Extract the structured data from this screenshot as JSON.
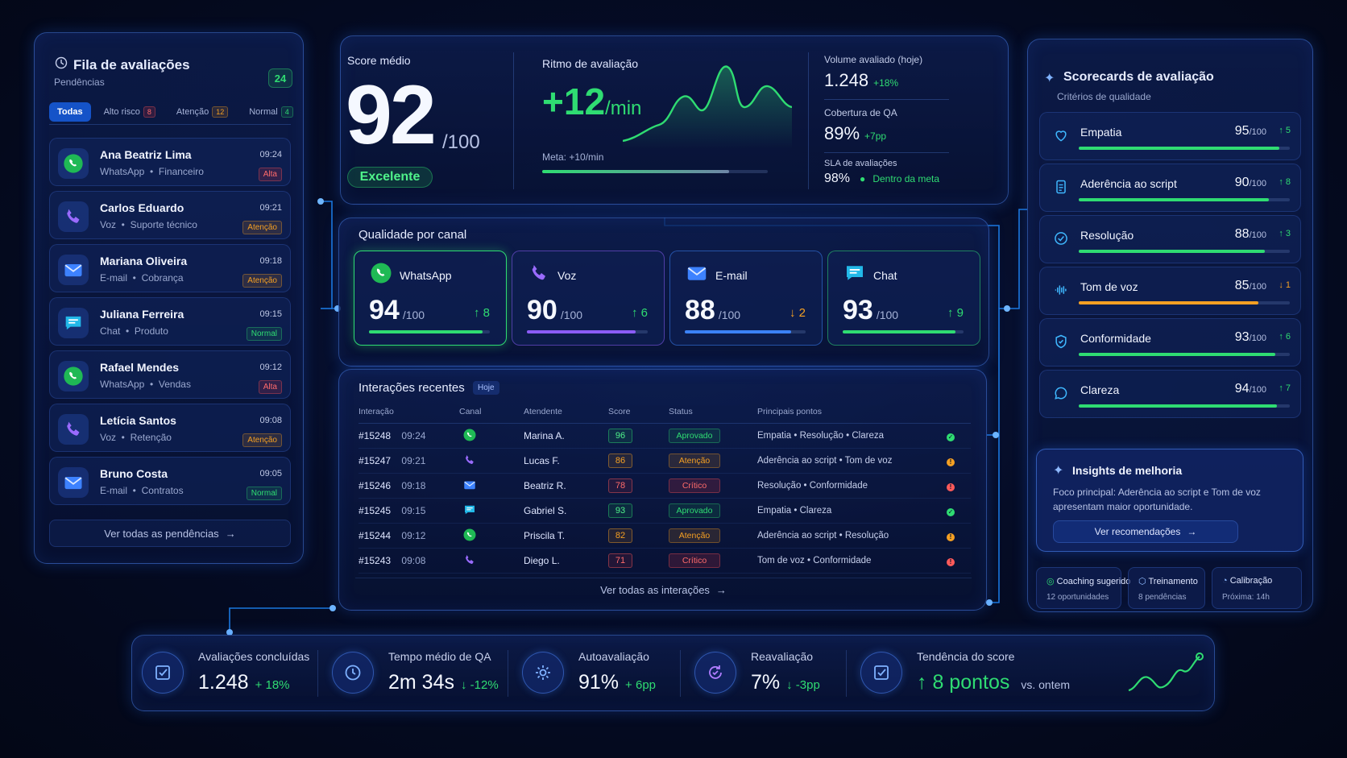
{
  "queue": {
    "title": "Fila de avaliações",
    "subtitle": "Pendências",
    "count": "24",
    "tabs": [
      {
        "label": "Todas",
        "badge": ""
      },
      {
        "label": "Alto risco",
        "badge": "8"
      },
      {
        "label": "Atenção",
        "badge": "12"
      },
      {
        "label": "Normal",
        "badge": "4"
      }
    ],
    "items": [
      {
        "name": "Ana Beatriz Lima",
        "channel": "WhatsApp",
        "area": "Financeiro",
        "time": "09:24",
        "priority": "Alta"
      },
      {
        "name": "Carlos Eduardo",
        "channel": "Voz",
        "area": "Suporte técnico",
        "time": "09:21",
        "priority": "Atenção"
      },
      {
        "name": "Mariana Oliveira",
        "channel": "E-mail",
        "area": "Cobrança",
        "time": "09:18",
        "priority": "Atenção"
      },
      {
        "name": "Juliana Ferreira",
        "channel": "Chat",
        "area": "Produto",
        "time": "09:15",
        "priority": "Normal"
      },
      {
        "name": "Rafael Mendes",
        "channel": "WhatsApp",
        "area": "Vendas",
        "time": "09:12",
        "priority": "Alta"
      },
      {
        "name": "Letícia Santos",
        "channel": "Voz",
        "area": "Retenção",
        "time": "09:08",
        "priority": "Atenção"
      },
      {
        "name": "Bruno Costa",
        "channel": "E-mail",
        "area": "Contratos",
        "time": "09:05",
        "priority": "Normal"
      }
    ],
    "footer": "Ver todas as pendências"
  },
  "score": {
    "label": "Score médio",
    "value": "92",
    "max": "/100",
    "status": "Excelente"
  },
  "pace": {
    "label": "Ritmo de avaliação",
    "value": "+12",
    "unit": "/min",
    "meta": "Meta: +10/min",
    "progress": 0.83
  },
  "volume": [
    {
      "label": "Volume avaliado (hoje)",
      "value": "1.248",
      "delta": "+18%"
    },
    {
      "label": "Cobertura de QA",
      "value": "89%",
      "delta": "+7pp"
    },
    {
      "label": "SLA de avaliações",
      "value": "98%",
      "delta": "Dentro da meta"
    }
  ],
  "channels": {
    "title": "Qualidade por canal",
    "items": [
      {
        "name": "WhatsApp",
        "score": "94",
        "max": "/100",
        "delta": "↑ 8",
        "trend": "up",
        "fill": 0.94,
        "color": "#2fdc72"
      },
      {
        "name": "Voz",
        "score": "90",
        "max": "/100",
        "delta": "↑ 6",
        "trend": "up",
        "fill": 0.9,
        "color": "#8b5cf6"
      },
      {
        "name": "E-mail",
        "score": "88",
        "max": "/100",
        "delta": "↓ 2",
        "trend": "down",
        "fill": 0.88,
        "color": "#3b82f6"
      },
      {
        "name": "Chat",
        "score": "93",
        "max": "/100",
        "delta": "↑ 9",
        "trend": "up",
        "fill": 0.93,
        "color": "#2fdc72"
      }
    ]
  },
  "interactions": {
    "title": "Interações recentes",
    "badge": "Hoje",
    "headers": [
      "Interação",
      "Canal",
      "Atendente",
      "Score",
      "Status",
      "Principais pontos"
    ],
    "rows": [
      {
        "id": "#15248",
        "time": "09:24",
        "channel": "whatsapp",
        "agent": "Marina A.",
        "score": "96",
        "status": "Aprovado",
        "points": "Empatia • Resolução • Clareza"
      },
      {
        "id": "#15247",
        "time": "09:21",
        "channel": "voz",
        "agent": "Lucas F.",
        "score": "86",
        "status": "Atenção",
        "points": "Aderência ao script • Tom de voz"
      },
      {
        "id": "#15246",
        "time": "09:18",
        "channel": "email",
        "agent": "Beatriz R.",
        "score": "78",
        "status": "Crítico",
        "points": "Resolução • Conformidade"
      },
      {
        "id": "#15245",
        "time": "09:15",
        "channel": "chat",
        "agent": "Gabriel S.",
        "score": "93",
        "status": "Aprovado",
        "points": "Empatia • Clareza"
      },
      {
        "id": "#15244",
        "time": "09:12",
        "channel": "whatsapp",
        "agent": "Priscila T.",
        "score": "82",
        "status": "Atenção",
        "points": "Aderência ao script • Resolução"
      },
      {
        "id": "#15243",
        "time": "09:08",
        "channel": "voz",
        "agent": "Diego L.",
        "score": "71",
        "status": "Crítico",
        "points": "Tom de voz • Conformidade"
      }
    ],
    "footer": "Ver todas as interações"
  },
  "scorecards": {
    "title": "Scorecards de avaliação",
    "subtitle": "Critérios de qualidade",
    "items": [
      {
        "name": "Empatia",
        "value": "95",
        "max": "/100",
        "delta": "↑ 5",
        "trend": "up",
        "icon": "heart-icon"
      },
      {
        "name": "Aderência ao script",
        "value": "90",
        "max": "/100",
        "delta": "↑ 8",
        "trend": "up",
        "icon": "document-icon"
      },
      {
        "name": "Resolução",
        "value": "88",
        "max": "/100",
        "delta": "↑ 3",
        "trend": "up",
        "icon": "check-circle-icon"
      },
      {
        "name": "Tom de voz",
        "value": "85",
        "max": "/100",
        "delta": "↓ 1",
        "trend": "down",
        "icon": "waveform-icon"
      },
      {
        "name": "Conformidade",
        "value": "93",
        "max": "/100",
        "delta": "↑ 6",
        "trend": "up",
        "icon": "shield-check-icon"
      },
      {
        "name": "Clareza",
        "value": "94",
        "max": "/100",
        "delta": "↑ 7",
        "trend": "up",
        "icon": "chat-bubble-icon"
      }
    ],
    "insight": {
      "title": "Insights de melhoria",
      "text": "Foco principal: Aderência ao script e Tom de voz apresentam maior oportunidade.",
      "button": "Ver recomendações"
    },
    "mini": [
      {
        "title": "Coaching sugerido",
        "sub": "12 oportunidades"
      },
      {
        "title": "Treinamento",
        "sub": "8 pendências"
      },
      {
        "title": "Calibração",
        "sub": "Próxima: 14h"
      }
    ]
  },
  "kpis": [
    {
      "label": "Avaliações concluídas",
      "value": "1.248",
      "delta": "+ 18%",
      "trend": "up",
      "suffix": ""
    },
    {
      "label": "Tempo médio de QA",
      "value": "2m 34s",
      "delta": "↓ -12%",
      "trend": "up",
      "suffix": ""
    },
    {
      "label": "Autoavaliação",
      "value": "91%",
      "delta": "+ 6pp",
      "trend": "up",
      "suffix": ""
    },
    {
      "label": "Reavaliação",
      "value": "7%",
      "delta": "↓ -3pp",
      "trend": "up",
      "suffix": ""
    },
    {
      "label": "Tendência do score",
      "value": "↑ 8 pontos",
      "delta": "",
      "trend": "up",
      "suffix": "vs. ontem"
    }
  ],
  "colors": {
    "accent": "#1f8bff",
    "good": "#2fdc72",
    "warn": "#f5a023",
    "bad": "#ff5a5a",
    "bg": "#04091c"
  }
}
